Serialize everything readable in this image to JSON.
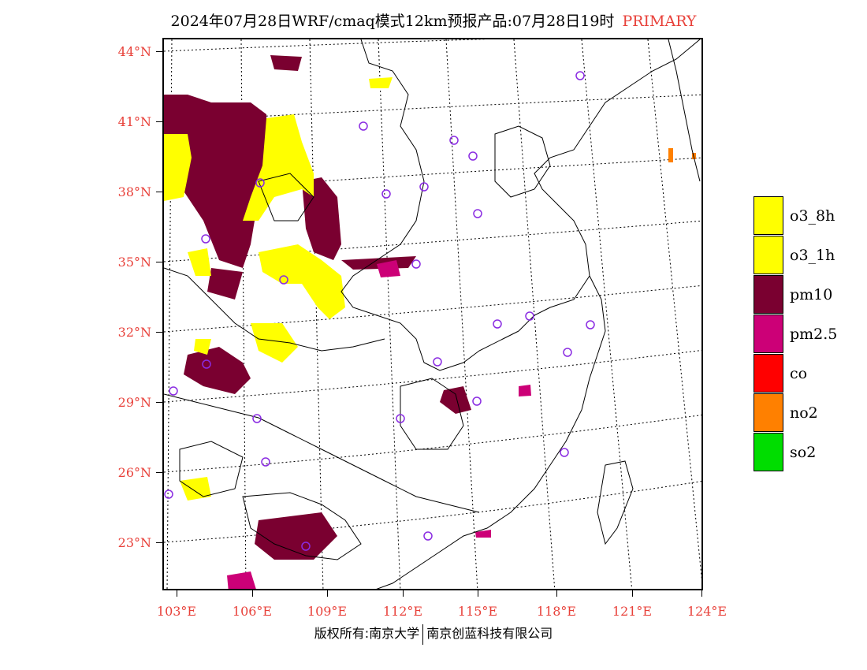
{
  "header": {
    "title": "2024年07月28日WRF/cmaq模式12km预报产品:07月28日19时",
    "tag": "PRIMARY"
  },
  "map": {
    "lat_labels": [
      "44°N",
      "41°N",
      "38°N",
      "35°N",
      "32°N",
      "29°N",
      "26°N",
      "23°N"
    ],
    "lon_labels": [
      "103°E",
      "106°E",
      "109°E",
      "112°E",
      "115°E",
      "118°E",
      "121°E",
      "124°E"
    ]
  },
  "legend": {
    "items": [
      {
        "label": "o3_8h",
        "color": "#ffff00"
      },
      {
        "label": "o3_1h",
        "color": "#ffff00"
      },
      {
        "label": "pm10",
        "color": "#7a0030"
      },
      {
        "label": "pm2.5",
        "color": "#cc0077"
      },
      {
        "label": "co",
        "color": "#ff0000"
      },
      {
        "label": "no2",
        "color": "#ff8000"
      },
      {
        "label": "so2",
        "color": "#00dd00"
      }
    ]
  },
  "footer": {
    "left": "版权所有:南京大学",
    "right": "南京创蓝科技有限公司"
  },
  "colors": {
    "axis_label": "#e8413a",
    "pm10": "#7a0030",
    "o3": "#ffff00",
    "pm25": "#cc0077",
    "station_marker": "#8a2be2"
  }
}
